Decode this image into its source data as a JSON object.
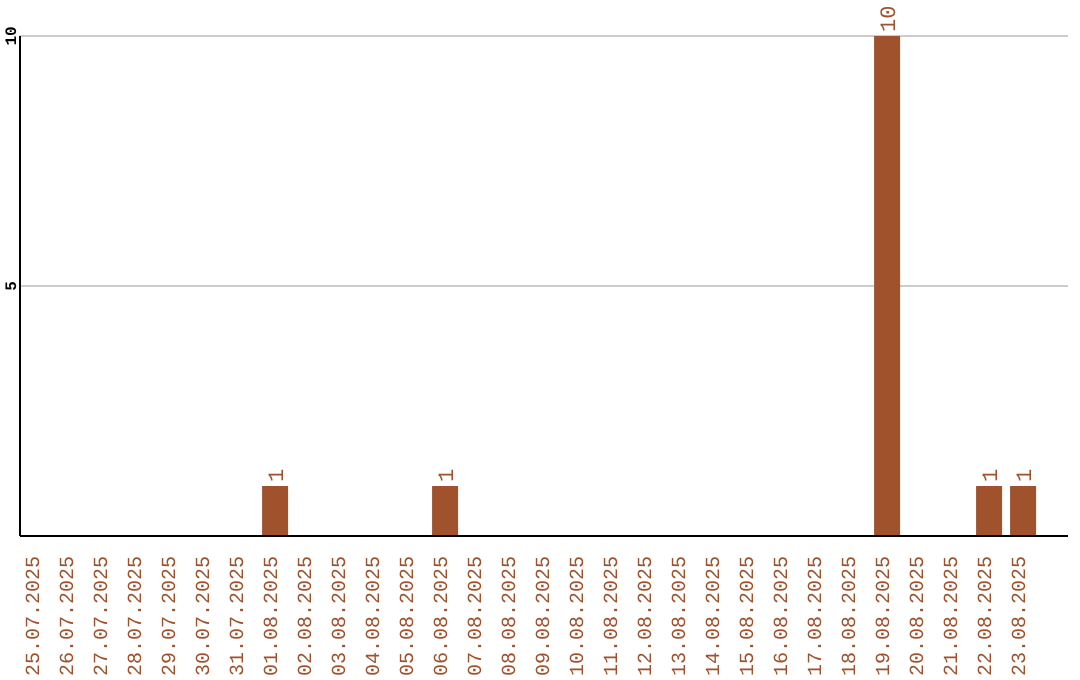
{
  "chart_data": {
    "type": "bar",
    "categories": [
      "25.07.2025",
      "26.07.2025",
      "27.07.2025",
      "28.07.2025",
      "29.07.2025",
      "30.07.2025",
      "31.07.2025",
      "01.08.2025",
      "02.08.2025",
      "03.08.2025",
      "04.08.2025",
      "05.08.2025",
      "06.08.2025",
      "07.08.2025",
      "08.08.2025",
      "09.08.2025",
      "10.08.2025",
      "11.08.2025",
      "12.08.2025",
      "13.08.2025",
      "14.08.2025",
      "15.08.2025",
      "16.08.2025",
      "17.08.2025",
      "18.08.2025",
      "19.08.2025",
      "20.08.2025",
      "21.08.2025",
      "22.08.2025",
      "23.08.2025"
    ],
    "values": [
      0,
      0,
      0,
      0,
      0,
      0,
      0,
      1,
      0,
      0,
      0,
      0,
      1,
      0,
      0,
      0,
      0,
      0,
      0,
      0,
      0,
      0,
      0,
      0,
      0,
      10,
      0,
      0,
      1,
      1
    ],
    "value_labels": [
      null,
      null,
      null,
      null,
      null,
      null,
      null,
      "1",
      null,
      null,
      null,
      null,
      "1",
      null,
      null,
      null,
      null,
      null,
      null,
      null,
      null,
      null,
      null,
      null,
      null,
      "10",
      null,
      null,
      "1",
      "1"
    ],
    "color": "#a0522d",
    "ylim": [
      0,
      10
    ],
    "yticks": [
      5,
      10
    ],
    "grid": "y"
  }
}
